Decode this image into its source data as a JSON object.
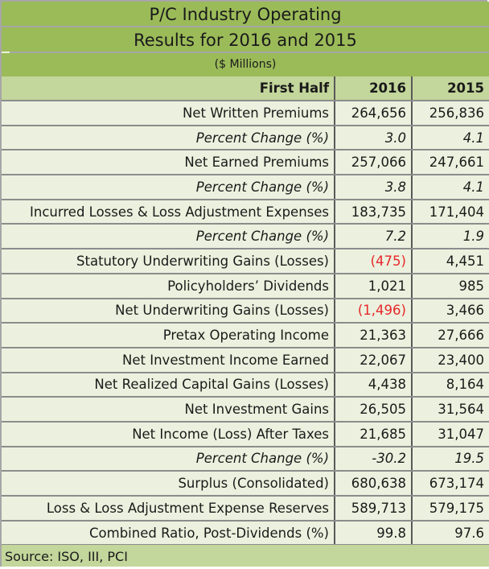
{
  "title": {
    "line1": "P/C Industry Operating",
    "line2": "Results for 2016 and 2015",
    "units": "($ Millions)"
  },
  "header": {
    "label": "First Half",
    "col2016": "2016",
    "col2015": "2015"
  },
  "rows": [
    {
      "label": "Net Written Premiums",
      "v2016": "264,656",
      "v2015": "256,836",
      "italic": false,
      "neg2016": false
    },
    {
      "label": "Percent Change (%)",
      "v2016": "3.0",
      "v2015": "4.1",
      "italic": true,
      "neg2016": false
    },
    {
      "label": "Net Earned Premiums",
      "v2016": "257,066",
      "v2015": "247,661",
      "italic": false,
      "neg2016": false
    },
    {
      "label": "Percent Change (%)",
      "v2016": "3.8",
      "v2015": "4.1",
      "italic": true,
      "neg2016": false
    },
    {
      "label": "Incurred Losses & Loss Adjustment Expenses",
      "v2016": "183,735",
      "v2015": "171,404",
      "italic": false,
      "neg2016": false
    },
    {
      "label": "Percent Change (%)",
      "v2016": "7.2",
      "v2015": "1.9",
      "italic": true,
      "neg2016": false
    },
    {
      "label": "Statutory Underwriting Gains (Losses)",
      "v2016": "(475)",
      "v2015": "4,451",
      "italic": false,
      "neg2016": true
    },
    {
      "label": "Policyholders’ Dividends",
      "v2016": "1,021",
      "v2015": "985",
      "italic": false,
      "neg2016": false
    },
    {
      "label": "Net Underwriting Gains (Losses)",
      "v2016": "(1,496)",
      "v2015": "3,466",
      "italic": false,
      "neg2016": true
    },
    {
      "label": "Pretax Operating Income",
      "v2016": "21,363",
      "v2015": "27,666",
      "italic": false,
      "neg2016": false
    },
    {
      "label": "Net Investment Income Earned",
      "v2016": "22,067",
      "v2015": "23,400",
      "italic": false,
      "neg2016": false
    },
    {
      "label": "Net Realized Capital Gains (Losses)",
      "v2016": "4,438",
      "v2015": "8,164",
      "italic": false,
      "neg2016": false
    },
    {
      "label": "Net Investment Gains",
      "v2016": "26,505",
      "v2015": "31,564",
      "italic": false,
      "neg2016": false
    },
    {
      "label": "Net Income (Loss) After Taxes",
      "v2016": "21,685",
      "v2015": "31,047",
      "italic": false,
      "neg2016": false
    },
    {
      "label": "Percent Change (%)",
      "v2016": "-30.2",
      "v2015": "19.5",
      "italic": true,
      "neg2016": false
    },
    {
      "label": "Surplus (Consolidated)",
      "v2016": "680,638",
      "v2015": "673,174",
      "italic": false,
      "neg2016": false
    },
    {
      "label": "Loss & Loss Adjustment Expense Reserves",
      "v2016": "589,713",
      "v2015": "579,175",
      "italic": false,
      "neg2016": false
    },
    {
      "label": "Combined Ratio, Post-Dividends (%)",
      "v2016": "99.8",
      "v2015": "97.6",
      "italic": false,
      "neg2016": false
    }
  ],
  "footer": {
    "source": "Source: ISO, III, PCI"
  },
  "colors": {
    "title_bg": "#9bbb59",
    "header_bg": "#c3d69b",
    "row_bg": "#ebf1de",
    "negative": "#e8272a"
  }
}
